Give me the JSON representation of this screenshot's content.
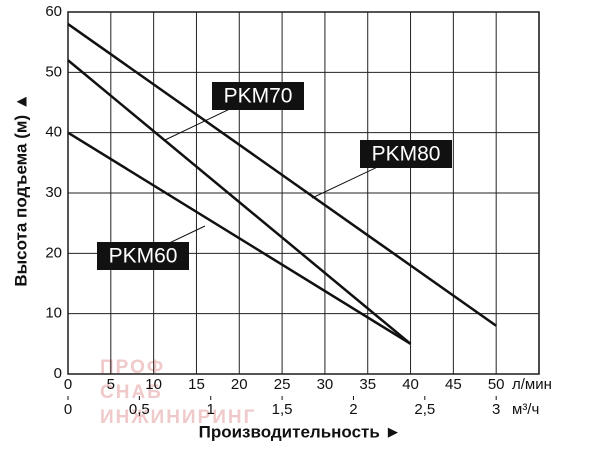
{
  "chart_data": {
    "type": "line",
    "y_label": "Высота подъема (м) ▲",
    "x_label": "Производительность ►",
    "x_unit": "л/мин",
    "x2_unit": "м³/ч",
    "watermark": [
      "ПРОФ",
      "СНАБ",
      "ИНЖИНИРИНГ"
    ],
    "xlim": [
      0,
      55
    ],
    "xticks": [
      0,
      5,
      10,
      15,
      20,
      25,
      30,
      35,
      40,
      45,
      50
    ],
    "x2lim": [
      0,
      3.3
    ],
    "x2ticks": [
      0,
      {
        "value": 0.5,
        "label": "0,5"
      },
      1,
      {
        "value": 1.5,
        "label": "1,5"
      },
      2,
      {
        "value": 2.5,
        "label": "2,5"
      },
      3
    ],
    "ylim": [
      0,
      60
    ],
    "yticks": [
      0,
      10,
      20,
      30,
      40,
      50,
      60
    ],
    "grid": true,
    "series": [
      {
        "name": "PKM60",
        "color": "#111111",
        "x": [
          0,
          40
        ],
        "values": [
          40,
          5
        ]
      },
      {
        "name": "PKM70",
        "color": "#111111",
        "x": [
          0,
          40
        ],
        "values": [
          52,
          5
        ]
      },
      {
        "name": "PKM80",
        "color": "#111111",
        "x": [
          0,
          50
        ],
        "values": [
          58,
          8
        ]
      }
    ]
  }
}
